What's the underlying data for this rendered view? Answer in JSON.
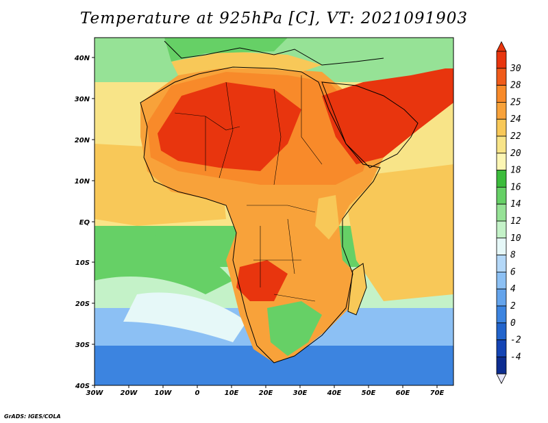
{
  "title": "Temperature at 925hPa [C], VT: 2021091903",
  "credit": "GrADS: IGES/COLA",
  "axes": {
    "lon_ticks": [
      "30W",
      "20W",
      "10W",
      "0",
      "10E",
      "20E",
      "30E",
      "40E",
      "50E",
      "60E",
      "70E"
    ],
    "lat_ticks": [
      "40N",
      "30N",
      "20N",
      "10N",
      "EQ",
      "10S",
      "20S",
      "30S",
      "40S"
    ]
  },
  "colorbar": {
    "labels": [
      "30",
      "28",
      "25",
      "24",
      "22",
      "20",
      "18",
      "16",
      "14",
      "12",
      "10",
      "8",
      "6",
      "4",
      "2",
      "0",
      "-2",
      "-4"
    ],
    "colors": [
      "#e8350e",
      "#f05b1a",
      "#f88a2a",
      "#f8a23a",
      "#f8c858",
      "#f8e488",
      "#fcf6b4",
      "#3cbc3c",
      "#66d066",
      "#96e296",
      "#c4f2c8",
      "#e6f8f8",
      "#b4d8f8",
      "#8cc0f4",
      "#64a4ec",
      "#3c84e0",
      "#2264cc",
      "#1444b4",
      "#0c2c90"
    ]
  },
  "map_colors": {
    "ocean_south": "#c4f2c8",
    "ocean_tropic": "#f8e488",
    "sea_north": "#96e296",
    "warm": "#f8c858",
    "hot": "#f8a23a",
    "hotter": "#f88a2a",
    "hottest": "#e8350e",
    "cool_green": "#66d066",
    "cold_blue": "#8cc0f4",
    "colder_blue": "#3c84e0"
  }
}
